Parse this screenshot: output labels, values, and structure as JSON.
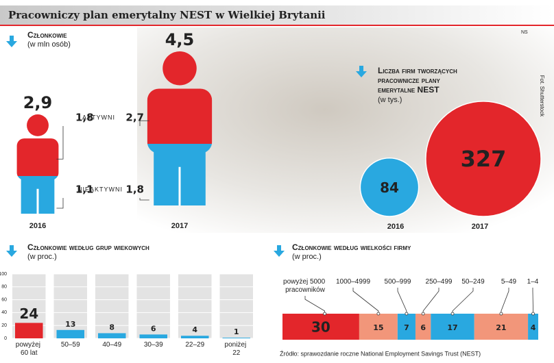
{
  "title": "Pracowniczy plan emerytalny NEST w Wielkiej Brytanii",
  "tag": "NS",
  "photo_credit": "Fot. Shutterstock",
  "source": "Źródło: sprawozdanie roczne National Employment Savings Trust (NEST)",
  "chart_data": [
    {
      "type": "pictogram",
      "title": "Członkowie",
      "subtitle": "(w mln osób)",
      "categories": [
        "2016",
        "2017"
      ],
      "totals": [
        2.9,
        4.5
      ],
      "total_labels": [
        "2,9",
        "4,5"
      ],
      "series": [
        {
          "name": "AKTYWNI",
          "color": "#e3262b",
          "values": [
            1.8,
            2.7
          ],
          "value_labels": [
            "1,8",
            "2,7"
          ]
        },
        {
          "name": "NIEAKTYWNI",
          "color": "#29a8e0",
          "values": [
            1.1,
            1.8
          ],
          "value_labels": [
            "1,1",
            "1,8"
          ]
        }
      ]
    },
    {
      "type": "bubble",
      "title": "Liczba firm tworzących pracownicze plany emerytalne NEST",
      "subtitle": "(w tys.)",
      "categories": [
        "2016",
        "2017"
      ],
      "values": [
        84,
        327
      ],
      "colors": [
        "#29a8e0",
        "#e3262b"
      ]
    },
    {
      "type": "bar",
      "title": "Członkowie według grup wiekowych",
      "subtitle": "(w proc.)",
      "categories": [
        "powyżej 60 lat",
        "50–59",
        "40–49",
        "30–39",
        "22–29",
        "poniżej 22"
      ],
      "values": [
        24,
        13,
        8,
        6,
        4,
        1
      ],
      "colors": [
        "#e3262b",
        "#29a8e0",
        "#29a8e0",
        "#29a8e0",
        "#29a8e0",
        "#29a8e0"
      ],
      "ylim": [
        0,
        100
      ],
      "yticks": [
        0,
        20,
        40,
        60,
        80,
        100
      ],
      "grid": true
    },
    {
      "type": "stacked",
      "title": "Członkowie według wielkości firmy",
      "subtitle": "(w proc.)",
      "categories": [
        "powyżej 5000 pracowników",
        "1000–4999",
        "500–999",
        "250–499",
        "50–249",
        "5–49",
        "1–4"
      ],
      "values": [
        30,
        15,
        7,
        6,
        17,
        21,
        4
      ],
      "colors": [
        "#e3262b",
        "#f2967a",
        "#29a8e0",
        "#f2967a",
        "#29a8e0",
        "#f2967a",
        "#29a8e0"
      ]
    }
  ]
}
